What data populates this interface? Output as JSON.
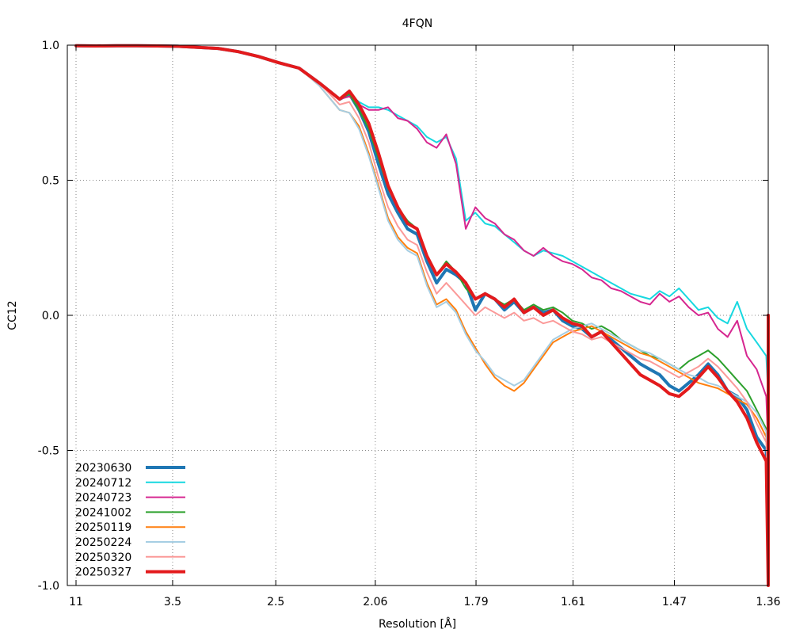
{
  "chart_data": {
    "type": "line",
    "title": "4FQN",
    "xlabel": "Resolution [Å]",
    "ylabel": "CC12",
    "xlim": [
      0.00826,
      0.5407
    ],
    "ylim": [
      -1.0,
      1.0
    ],
    "grid": true,
    "legend_position": "bottom-left",
    "x_ticks": [
      {
        "label": "11",
        "value": 0.00826
      },
      {
        "label": "3.5",
        "value": 0.08163
      },
      {
        "label": "2.5",
        "value": 0.16
      },
      {
        "label": "2.06",
        "value": 0.2356
      },
      {
        "label": "1.79",
        "value": 0.3121
      },
      {
        "label": "1.61",
        "value": 0.3858
      },
      {
        "label": "1.47",
        "value": 0.4628
      },
      {
        "label": "1.36",
        "value": 0.5407
      }
    ],
    "y_ticks": [
      {
        "label": "1.0",
        "value": 1.0
      },
      {
        "label": "0.5",
        "value": 0.5
      },
      {
        "label": "0.0",
        "value": 0.0
      },
      {
        "label": "-0.5",
        "value": -0.5
      },
      {
        "label": "-1.0",
        "value": -1.0
      }
    ],
    "x": [
      0.0083,
      0.0237,
      0.0391,
      0.0545,
      0.0699,
      0.0853,
      0.1007,
      0.1161,
      0.1315,
      0.1469,
      0.1623,
      0.1777,
      0.1931,
      0.2085,
      0.2159,
      0.2232,
      0.2306,
      0.238,
      0.2453,
      0.2527,
      0.2601,
      0.2674,
      0.2748,
      0.2822,
      0.2895,
      0.2969,
      0.3043,
      0.3116,
      0.319,
      0.3264,
      0.3337,
      0.3411,
      0.3485,
      0.3558,
      0.3632,
      0.3706,
      0.3779,
      0.3853,
      0.3927,
      0.4,
      0.4074,
      0.4148,
      0.4221,
      0.4295,
      0.4369,
      0.4442,
      0.4516,
      0.459,
      0.4663,
      0.4737,
      0.4811,
      0.4884,
      0.4958,
      0.5032,
      0.5105,
      0.5179,
      0.5253,
      0.5326,
      0.5366,
      0.5407
    ],
    "series": [
      {
        "name": "20230630",
        "color": "#1f77b4",
        "width": 4,
        "y": [
          0.998,
          0.997,
          0.998,
          0.998,
          0.997,
          0.996,
          0.992,
          0.988,
          0.976,
          0.958,
          0.935,
          0.915,
          0.86,
          0.8,
          0.82,
          0.76,
          0.68,
          0.56,
          0.45,
          0.38,
          0.32,
          0.3,
          0.2,
          0.12,
          0.17,
          0.15,
          0.12,
          0.02,
          0.08,
          0.06,
          0.02,
          0.05,
          0.01,
          0.03,
          0.01,
          0.02,
          -0.02,
          -0.04,
          -0.05,
          -0.08,
          -0.06,
          -0.09,
          -0.12,
          -0.15,
          -0.18,
          -0.2,
          -0.22,
          -0.26,
          -0.28,
          -0.25,
          -0.22,
          -0.18,
          -0.22,
          -0.28,
          -0.3,
          -0.35,
          -0.45,
          -0.5,
          -0.75,
          0.0
        ]
      },
      {
        "name": "20240712",
        "color": "#17d8e0",
        "width": 2,
        "y": [
          0.998,
          0.997,
          0.998,
          0.998,
          0.997,
          0.996,
          0.992,
          0.988,
          0.976,
          0.958,
          0.935,
          0.915,
          0.86,
          0.8,
          0.82,
          0.79,
          0.77,
          0.77,
          0.76,
          0.74,
          0.72,
          0.7,
          0.66,
          0.64,
          0.66,
          0.58,
          0.35,
          0.38,
          0.34,
          0.33,
          0.3,
          0.27,
          0.24,
          0.22,
          0.24,
          0.23,
          0.22,
          0.2,
          0.18,
          0.16,
          0.14,
          0.12,
          0.1,
          0.08,
          0.07,
          0.06,
          0.09,
          0.07,
          0.1,
          0.06,
          0.02,
          0.03,
          -0.01,
          -0.03,
          0.05,
          -0.05,
          -0.1,
          -0.15,
          -0.3,
          0.0
        ]
      },
      {
        "name": "20240723",
        "color": "#d62790",
        "width": 2,
        "y": [
          0.998,
          0.997,
          0.998,
          0.998,
          0.997,
          0.996,
          0.992,
          0.988,
          0.976,
          0.958,
          0.935,
          0.915,
          0.86,
          0.8,
          0.81,
          0.78,
          0.76,
          0.76,
          0.77,
          0.73,
          0.72,
          0.69,
          0.64,
          0.62,
          0.67,
          0.56,
          0.32,
          0.4,
          0.36,
          0.34,
          0.3,
          0.28,
          0.24,
          0.22,
          0.25,
          0.22,
          0.2,
          0.19,
          0.17,
          0.14,
          0.13,
          0.1,
          0.09,
          0.07,
          0.05,
          0.04,
          0.08,
          0.05,
          0.07,
          0.03,
          0.0,
          0.01,
          -0.05,
          -0.08,
          -0.02,
          -0.15,
          -0.2,
          -0.3,
          -0.5,
          0.0
        ]
      },
      {
        "name": "20241002",
        "color": "#2ca02c",
        "width": 2,
        "y": [
          0.998,
          0.997,
          0.998,
          0.998,
          0.997,
          0.996,
          0.992,
          0.988,
          0.976,
          0.958,
          0.935,
          0.915,
          0.86,
          0.8,
          0.82,
          0.76,
          0.69,
          0.58,
          0.47,
          0.4,
          0.35,
          0.32,
          0.22,
          0.15,
          0.2,
          0.16,
          0.1,
          0.06,
          0.08,
          0.06,
          0.04,
          0.06,
          0.02,
          0.04,
          0.02,
          0.03,
          0.01,
          -0.02,
          -0.03,
          -0.05,
          -0.04,
          -0.06,
          -0.09,
          -0.11,
          -0.13,
          -0.15,
          -0.16,
          -0.18,
          -0.2,
          -0.17,
          -0.15,
          -0.13,
          -0.16,
          -0.2,
          -0.24,
          -0.28,
          -0.35,
          -0.42,
          -0.65,
          0.0
        ]
      },
      {
        "name": "20250119",
        "color": "#ff7f0e",
        "width": 2,
        "y": [
          0.998,
          0.997,
          0.998,
          0.998,
          0.997,
          0.996,
          0.992,
          0.988,
          0.976,
          0.958,
          0.935,
          0.915,
          0.85,
          0.76,
          0.75,
          0.7,
          0.6,
          0.48,
          0.36,
          0.29,
          0.25,
          0.23,
          0.12,
          0.04,
          0.06,
          0.02,
          -0.06,
          -0.12,
          -0.18,
          -0.23,
          -0.26,
          -0.28,
          -0.25,
          -0.2,
          -0.15,
          -0.1,
          -0.08,
          -0.06,
          -0.05,
          -0.04,
          -0.06,
          -0.08,
          -0.1,
          -0.12,
          -0.14,
          -0.15,
          -0.17,
          -0.19,
          -0.21,
          -0.23,
          -0.25,
          -0.26,
          -0.27,
          -0.29,
          -0.31,
          -0.33,
          -0.38,
          -0.45,
          -0.6,
          0.0
        ]
      },
      {
        "name": "20250224",
        "color": "#a6cee3",
        "width": 2,
        "y": [
          0.998,
          0.997,
          0.998,
          0.998,
          0.997,
          0.996,
          0.992,
          0.988,
          0.976,
          0.958,
          0.935,
          0.915,
          0.85,
          0.76,
          0.75,
          0.69,
          0.59,
          0.47,
          0.35,
          0.28,
          0.24,
          0.22,
          0.11,
          0.03,
          0.05,
          0.01,
          -0.07,
          -0.13,
          -0.17,
          -0.22,
          -0.24,
          -0.26,
          -0.24,
          -0.19,
          -0.14,
          -0.09,
          -0.07,
          -0.05,
          -0.04,
          -0.03,
          -0.05,
          -0.07,
          -0.09,
          -0.11,
          -0.13,
          -0.14,
          -0.16,
          -0.18,
          -0.2,
          -0.22,
          -0.23,
          -0.25,
          -0.26,
          -0.28,
          -0.3,
          -0.32,
          -0.36,
          -0.43,
          -0.58,
          0.0
        ]
      },
      {
        "name": "20250320",
        "color": "#fb9a99",
        "width": 2,
        "y": [
          0.998,
          0.997,
          0.998,
          0.998,
          0.997,
          0.996,
          0.992,
          0.988,
          0.976,
          0.958,
          0.935,
          0.915,
          0.86,
          0.78,
          0.79,
          0.73,
          0.64,
          0.51,
          0.4,
          0.33,
          0.28,
          0.26,
          0.16,
          0.08,
          0.12,
          0.08,
          0.04,
          0.0,
          0.03,
          0.01,
          -0.01,
          0.01,
          -0.02,
          -0.01,
          -0.03,
          -0.02,
          -0.04,
          -0.06,
          -0.07,
          -0.09,
          -0.08,
          -0.1,
          -0.12,
          -0.14,
          -0.16,
          -0.17,
          -0.19,
          -0.21,
          -0.23,
          -0.21,
          -0.19,
          -0.16,
          -0.19,
          -0.23,
          -0.27,
          -0.32,
          -0.4,
          -0.47,
          -0.7,
          0.0
        ]
      },
      {
        "name": "20250327",
        "color": "#e31a1c",
        "width": 4,
        "y": [
          0.998,
          0.997,
          0.998,
          0.998,
          0.997,
          0.996,
          0.992,
          0.988,
          0.976,
          0.958,
          0.935,
          0.915,
          0.86,
          0.8,
          0.83,
          0.78,
          0.71,
          0.6,
          0.48,
          0.4,
          0.34,
          0.32,
          0.22,
          0.15,
          0.19,
          0.16,
          0.12,
          0.06,
          0.08,
          0.06,
          0.03,
          0.06,
          0.01,
          0.03,
          0.0,
          0.02,
          -0.01,
          -0.03,
          -0.04,
          -0.08,
          -0.06,
          -0.1,
          -0.14,
          -0.18,
          -0.22,
          -0.24,
          -0.26,
          -0.29,
          -0.3,
          -0.27,
          -0.23,
          -0.19,
          -0.23,
          -0.28,
          -0.32,
          -0.38,
          -0.47,
          -0.54,
          -1.0,
          0.0
        ]
      }
    ]
  }
}
